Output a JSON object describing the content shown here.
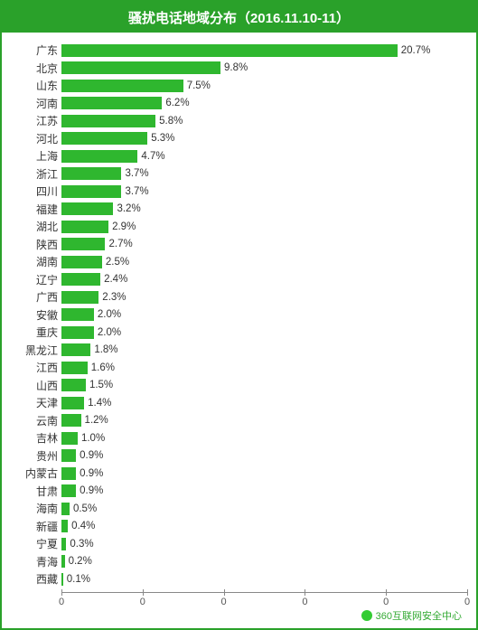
{
  "chart": {
    "type": "bar",
    "title": "骚扰电话地域分布（2016.11.10-11）",
    "title_fontsize": 15,
    "title_color": "#ffffff",
    "title_bg": "#2aa12a",
    "border_color": "#2aa12a",
    "background_color": "#ffffff",
    "bar_color": "#2fb72f",
    "label_fontsize": 12,
    "value_fontsize": 11.5,
    "value_suffix": "%",
    "xmax": 25,
    "xtick_positions": [
      0,
      5,
      10,
      15,
      20,
      25
    ],
    "xtick_labels": [
      "0",
      "0",
      "0",
      "0",
      "0",
      "0"
    ],
    "axis_color": "#888888",
    "tick_fontsize": 11,
    "categories": [
      "广东",
      "北京",
      "山东",
      "河南",
      "江苏",
      "河北",
      "上海",
      "浙江",
      "四川",
      "福建",
      "湖北",
      "陕西",
      "湖南",
      "辽宁",
      "广西",
      "安徽",
      "重庆",
      "黑龙江",
      "江西",
      "山西",
      "天津",
      "云南",
      "吉林",
      "贵州",
      "内蒙古",
      "甘肃",
      "海南",
      "新疆",
      "宁夏",
      "青海",
      "西藏"
    ],
    "values": [
      20.7,
      9.8,
      7.5,
      6.2,
      5.8,
      5.3,
      4.7,
      3.7,
      3.7,
      3.2,
      2.9,
      2.7,
      2.5,
      2.4,
      2.3,
      2.0,
      2.0,
      1.8,
      1.6,
      1.5,
      1.4,
      1.2,
      1.0,
      0.9,
      0.9,
      0.9,
      0.5,
      0.4,
      0.3,
      0.2,
      0.1
    ]
  },
  "footer": {
    "text": "360互联网安全中心",
    "color": "#33aa33",
    "logo_color": "#33cc33"
  }
}
